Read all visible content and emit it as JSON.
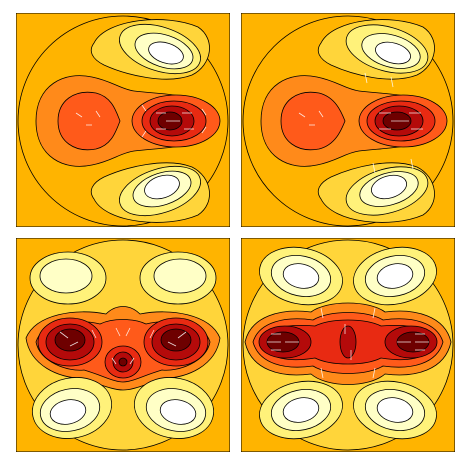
{
  "figure": {
    "panel_count": 4,
    "colormap": [
      "#ffffff",
      "#ffffc6",
      "#fff27a",
      "#ffd53a",
      "#ffb400",
      "#ff8a1a",
      "#ff5a1a",
      "#e82a12",
      "#b40a0a",
      "#6e0000"
    ],
    "background_color": "#ffb400",
    "contour_line_color": "#000000",
    "vector_color": "#ffffff",
    "panels": [
      {
        "id": "top-left",
        "pattern": "two-lobe-horizontal"
      },
      {
        "id": "top-right",
        "pattern": "two-lobe-horizontal"
      },
      {
        "id": "bottom-left",
        "pattern": "four-lobe-with-center"
      },
      {
        "id": "bottom-right",
        "pattern": "four-lobe-elongated"
      }
    ]
  }
}
